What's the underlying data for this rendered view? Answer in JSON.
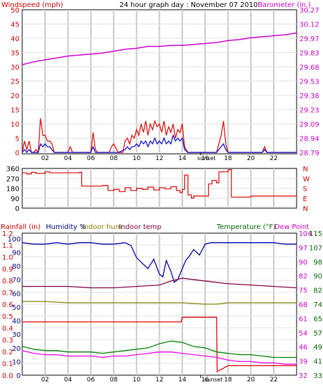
{
  "chart_data": [
    {
      "type": "line",
      "panel": "wind-baro",
      "title": "24 hour graph day : November 07 2010",
      "left_label": "Windspeed (mph)",
      "right_label": "Barometer (in.)",
      "left_ticks": [
        "0",
        "5",
        "10",
        "15",
        "20",
        "25",
        "30",
        "35",
        "40",
        "45",
        "50"
      ],
      "left_lim": [
        0,
        50
      ],
      "right_ticks": [
        "28.79",
        "28.94",
        "29.09",
        "29.23",
        "29.38",
        "29.53",
        "29.68",
        "29.83",
        "29.97",
        "30.12",
        "30.27"
      ],
      "right_lim": [
        28.79,
        30.27
      ],
      "x_ticks": [
        "02",
        "04",
        "06",
        "08",
        "10",
        "12",
        "14",
        "16",
        "18",
        "20",
        "22"
      ],
      "x_lim": [
        0,
        24
      ],
      "sunset_label": "sunset",
      "sunset_x": 15.6,
      "grid": true,
      "series": [
        {
          "name": "Barometer",
          "axis": "right",
          "color": "#cc00cc",
          "role": "barometer",
          "x": [
            0,
            1,
            2,
            3,
            4,
            5,
            6,
            7,
            8,
            9,
            10,
            11,
            12,
            13,
            14,
            15,
            16,
            17,
            18,
            19,
            20,
            21,
            22,
            23,
            24
          ],
          "y": [
            29.7,
            29.73,
            29.75,
            29.77,
            29.79,
            29.8,
            29.81,
            29.82,
            29.84,
            29.86,
            29.87,
            29.89,
            29.89,
            29.9,
            29.9,
            29.91,
            29.92,
            29.93,
            29.95,
            29.96,
            29.98,
            29.99,
            30.0,
            30.01,
            30.03
          ]
        },
        {
          "name": "Wind gust",
          "axis": "left",
          "color": "#dd0000",
          "role": "wind-gust",
          "x": [
            0,
            0.2,
            0.4,
            0.6,
            0.8,
            1.0,
            1.2,
            1.4,
            1.6,
            1.8,
            2.0,
            2.2,
            2.4,
            2.6,
            2.8,
            3.0,
            4.0,
            4.2,
            4.4,
            5.0,
            6.0,
            6.2,
            6.4,
            6.6,
            7.0,
            7.6,
            7.8,
            8.0,
            8.4,
            8.8,
            9.0,
            9.2,
            9.4,
            9.6,
            9.8,
            10.0,
            10.2,
            10.4,
            10.6,
            10.8,
            11.0,
            11.2,
            11.4,
            11.6,
            11.8,
            12.0,
            12.2,
            12.4,
            12.6,
            12.8,
            13.0,
            13.2,
            13.4,
            13.6,
            13.8,
            14.0,
            14.2,
            14.5,
            15.0,
            16.0,
            17.0,
            17.4,
            17.6,
            17.8,
            18.0,
            18.4,
            19.0,
            20.0,
            21.0,
            21.2,
            21.4,
            22.0,
            23.0,
            24.0
          ],
          "y": [
            0,
            4,
            1,
            4,
            0,
            0,
            1,
            0,
            12,
            6,
            6,
            4,
            4,
            3,
            0,
            0,
            0,
            2,
            0,
            0,
            0,
            7,
            1,
            0,
            0,
            0,
            2,
            3,
            0,
            0,
            4,
            5,
            3,
            6,
            5,
            8,
            6,
            10,
            7,
            11,
            6,
            10,
            8,
            11,
            9,
            10,
            7,
            11,
            6,
            9,
            7,
            10,
            5,
            8,
            7,
            10,
            2,
            0,
            0,
            0,
            0,
            6,
            11,
            3,
            0,
            0,
            0,
            0,
            0,
            2,
            0,
            0,
            0,
            0
          ]
        },
        {
          "name": "Wind speed",
          "axis": "left",
          "color": "#0000cc",
          "role": "wind-speed",
          "x": [
            0,
            0.2,
            0.4,
            0.6,
            0.8,
            1.0,
            1.2,
            1.4,
            1.6,
            1.8,
            2.0,
            2.2,
            2.4,
            2.6,
            2.8,
            3.0,
            4.0,
            5.0,
            6.0,
            6.2,
            6.4,
            7.0,
            8.0,
            8.4,
            9.0,
            9.2,
            9.4,
            9.6,
            9.8,
            10.0,
            10.2,
            10.4,
            10.6,
            10.8,
            11.0,
            11.2,
            11.4,
            11.6,
            11.8,
            12.0,
            12.2,
            12.4,
            12.6,
            12.8,
            13.0,
            13.2,
            13.4,
            13.6,
            13.8,
            14.0,
            14.2,
            14.5,
            15.0,
            17.0,
            17.4,
            17.6,
            17.8,
            18.0,
            19.0,
            20.0,
            21.0,
            21.2,
            21.4,
            22.0,
            24.0
          ],
          "y": [
            0,
            1,
            0,
            1,
            0,
            0,
            0,
            0,
            3,
            2,
            3,
            2,
            2,
            1,
            0,
            0,
            0,
            0,
            0,
            2,
            0,
            0,
            0,
            0,
            1,
            2,
            1,
            2,
            2,
            3,
            2,
            4,
            3,
            4,
            2,
            4,
            3,
            5,
            3,
            4,
            3,
            5,
            3,
            4,
            3,
            6,
            4,
            5,
            4,
            5,
            1,
            0,
            0,
            0,
            2,
            3,
            1,
            0,
            0,
            0,
            0,
            1,
            0,
            0,
            0
          ]
        }
      ]
    },
    {
      "type": "line",
      "panel": "wind-direction",
      "left_ticks": [
        "0",
        "90",
        "180",
        "270",
        "360"
      ],
      "left_lim": [
        0,
        360
      ],
      "right_labels": [
        "N",
        "W",
        "S",
        "E",
        "N"
      ],
      "grid": true,
      "series": [
        {
          "name": "Wind direction",
          "color": "#dd0000",
          "role": "wind-direction",
          "x": [
            0,
            0.4,
            0.8,
            1.2,
            2.0,
            2.4,
            4.0,
            5.0,
            5.2,
            6.0,
            7.0,
            7.5,
            8.0,
            8.5,
            9.0,
            9.5,
            10.0,
            10.5,
            11.0,
            11.5,
            12.0,
            12.5,
            13.0,
            13.5,
            13.8,
            14.0,
            14.2,
            14.5,
            14.8,
            15.0,
            16.0,
            16.3,
            16.6,
            17.0,
            17.2,
            18.0,
            18.3,
            19.0,
            20.0,
            21.0,
            22.0,
            23.0,
            24.0
          ],
          "y": [
            320,
            310,
            325,
            315,
            330,
            320,
            320,
            325,
            200,
            200,
            205,
            160,
            170,
            150,
            185,
            160,
            180,
            170,
            190,
            165,
            185,
            175,
            195,
            160,
            140,
            170,
            300,
            120,
            90,
            110,
            110,
            220,
            250,
            230,
            330,
            350,
            100,
            100,
            110,
            110,
            110,
            110,
            110
          ]
        }
      ]
    },
    {
      "type": "line",
      "panel": "rain-hum-temp",
      "labels": {
        "rainfall": "Rainfall (in)",
        "humidity": "Humidity %",
        "indoor_hum": "Indoor hum",
        "indoor_temp": "Indoor temp",
        "temperature": "Temperature (°F)",
        "dew_point": "Dew Point"
      },
      "rain_ticks": [
        "0.0",
        "0.1",
        "0.2",
        "0.3",
        "0.4",
        "0.5",
        "0.6",
        "0.7",
        "0.8",
        "0.9",
        "1.0",
        "1.1",
        "1.2"
      ],
      "rain_lim": [
        0,
        1.2
      ],
      "hum_ticks": [
        "0",
        "10",
        "20",
        "30",
        "40",
        "50",
        "60",
        "70",
        "80",
        "90",
        "100"
      ],
      "hum_lim": [
        0,
        104
      ],
      "right_ticks_a": [
        "32",
        "39",
        "46",
        "54",
        "61",
        "68",
        "75",
        "82",
        "90",
        "97",
        "104"
      ],
      "right_ticks_b": [
        "115",
        "107",
        "98",
        "90",
        "82",
        "74",
        "65",
        "57",
        "49",
        "41",
        "33"
      ],
      "x_ticks": [
        "02",
        "04",
        "06",
        "08",
        "10",
        "12",
        "14",
        "16",
        "18",
        "20",
        "22"
      ],
      "x_lim": [
        0,
        24
      ],
      "sunset_label": "sunset",
      "sunset_x": 15.6,
      "grid": true,
      "series": [
        {
          "name": "Humidity",
          "axis": "hum",
          "color": "#0000aa",
          "role": "humidity",
          "x": [
            0,
            1,
            2,
            3,
            4,
            5,
            6,
            7,
            8,
            9,
            9.5,
            10,
            10.5,
            11,
            11.5,
            12,
            12.3,
            12.6,
            13,
            13.3,
            13.6,
            14,
            14.3,
            14.6,
            15,
            15.5,
            16,
            16.5,
            17,
            18,
            19,
            20,
            21,
            22,
            23,
            24
          ],
          "y": [
            97,
            96,
            96,
            97,
            96,
            97,
            97,
            96,
            96,
            97,
            95,
            86,
            82,
            78,
            85,
            74,
            72,
            84,
            76,
            68,
            70,
            78,
            84,
            87,
            92,
            88,
            96,
            97,
            97,
            97,
            97,
            97,
            97,
            97,
            96,
            96
          ]
        },
        {
          "name": "Indoor hum",
          "axis": "hum",
          "color": "#808000",
          "role": "indoor-hum",
          "x": [
            0,
            2,
            4,
            6,
            8,
            10,
            12,
            14,
            16,
            17,
            18,
            20,
            22,
            24
          ],
          "y": [
            54,
            54,
            53,
            53,
            53,
            53,
            53,
            53,
            52,
            52,
            53,
            53,
            53,
            53
          ]
        },
        {
          "name": "Indoor temp",
          "axis": "hum",
          "color": "#800040",
          "role": "indoor-temp",
          "x": [
            0,
            2,
            4,
            6,
            8,
            10,
            12,
            13,
            14,
            15,
            16,
            18,
            20,
            22,
            24
          ],
          "y": [
            65,
            65,
            65,
            64,
            64,
            65,
            66,
            69,
            71,
            70,
            69,
            67,
            66,
            65,
            64
          ]
        },
        {
          "name": "Rain",
          "axis": "rain",
          "color": "#dd0000",
          "role": "rainfall",
          "x": [
            0,
            13.9,
            14.0,
            17.0,
            17.05,
            18.0,
            24.0
          ],
          "y": [
            0.45,
            0.45,
            0.49,
            0.49,
            0.03,
            0.08,
            0.08
          ]
        },
        {
          "name": "Temperature",
          "axis": "hum",
          "color": "#008000",
          "role": "temperature",
          "x": [
            0,
            1,
            2,
            3,
            4,
            5,
            6,
            7,
            8,
            9,
            10,
            11,
            12,
            13,
            14,
            15,
            16,
            17,
            18,
            19,
            20,
            21,
            22,
            23,
            24
          ],
          "y": [
            21,
            19,
            18,
            18,
            17,
            17,
            17,
            16,
            17,
            18,
            19,
            20,
            23,
            25,
            24,
            21,
            20,
            17,
            16,
            15,
            15,
            14,
            13,
            13,
            13
          ]
        },
        {
          "name": "Dew Point",
          "axis": "hum",
          "color": "#ee00ee",
          "role": "dew-point",
          "x": [
            0,
            1,
            2,
            3,
            4,
            5,
            6,
            7,
            8,
            9,
            10,
            11,
            12,
            13,
            14,
            15,
            16,
            17,
            18,
            19,
            20,
            21,
            22,
            23,
            24
          ],
          "y": [
            18,
            16,
            15,
            15,
            14,
            14,
            14,
            13,
            14,
            14,
            15,
            16,
            17,
            17,
            16,
            15,
            14,
            13,
            11,
            10,
            10,
            9,
            9,
            8,
            8
          ]
        }
      ]
    }
  ]
}
